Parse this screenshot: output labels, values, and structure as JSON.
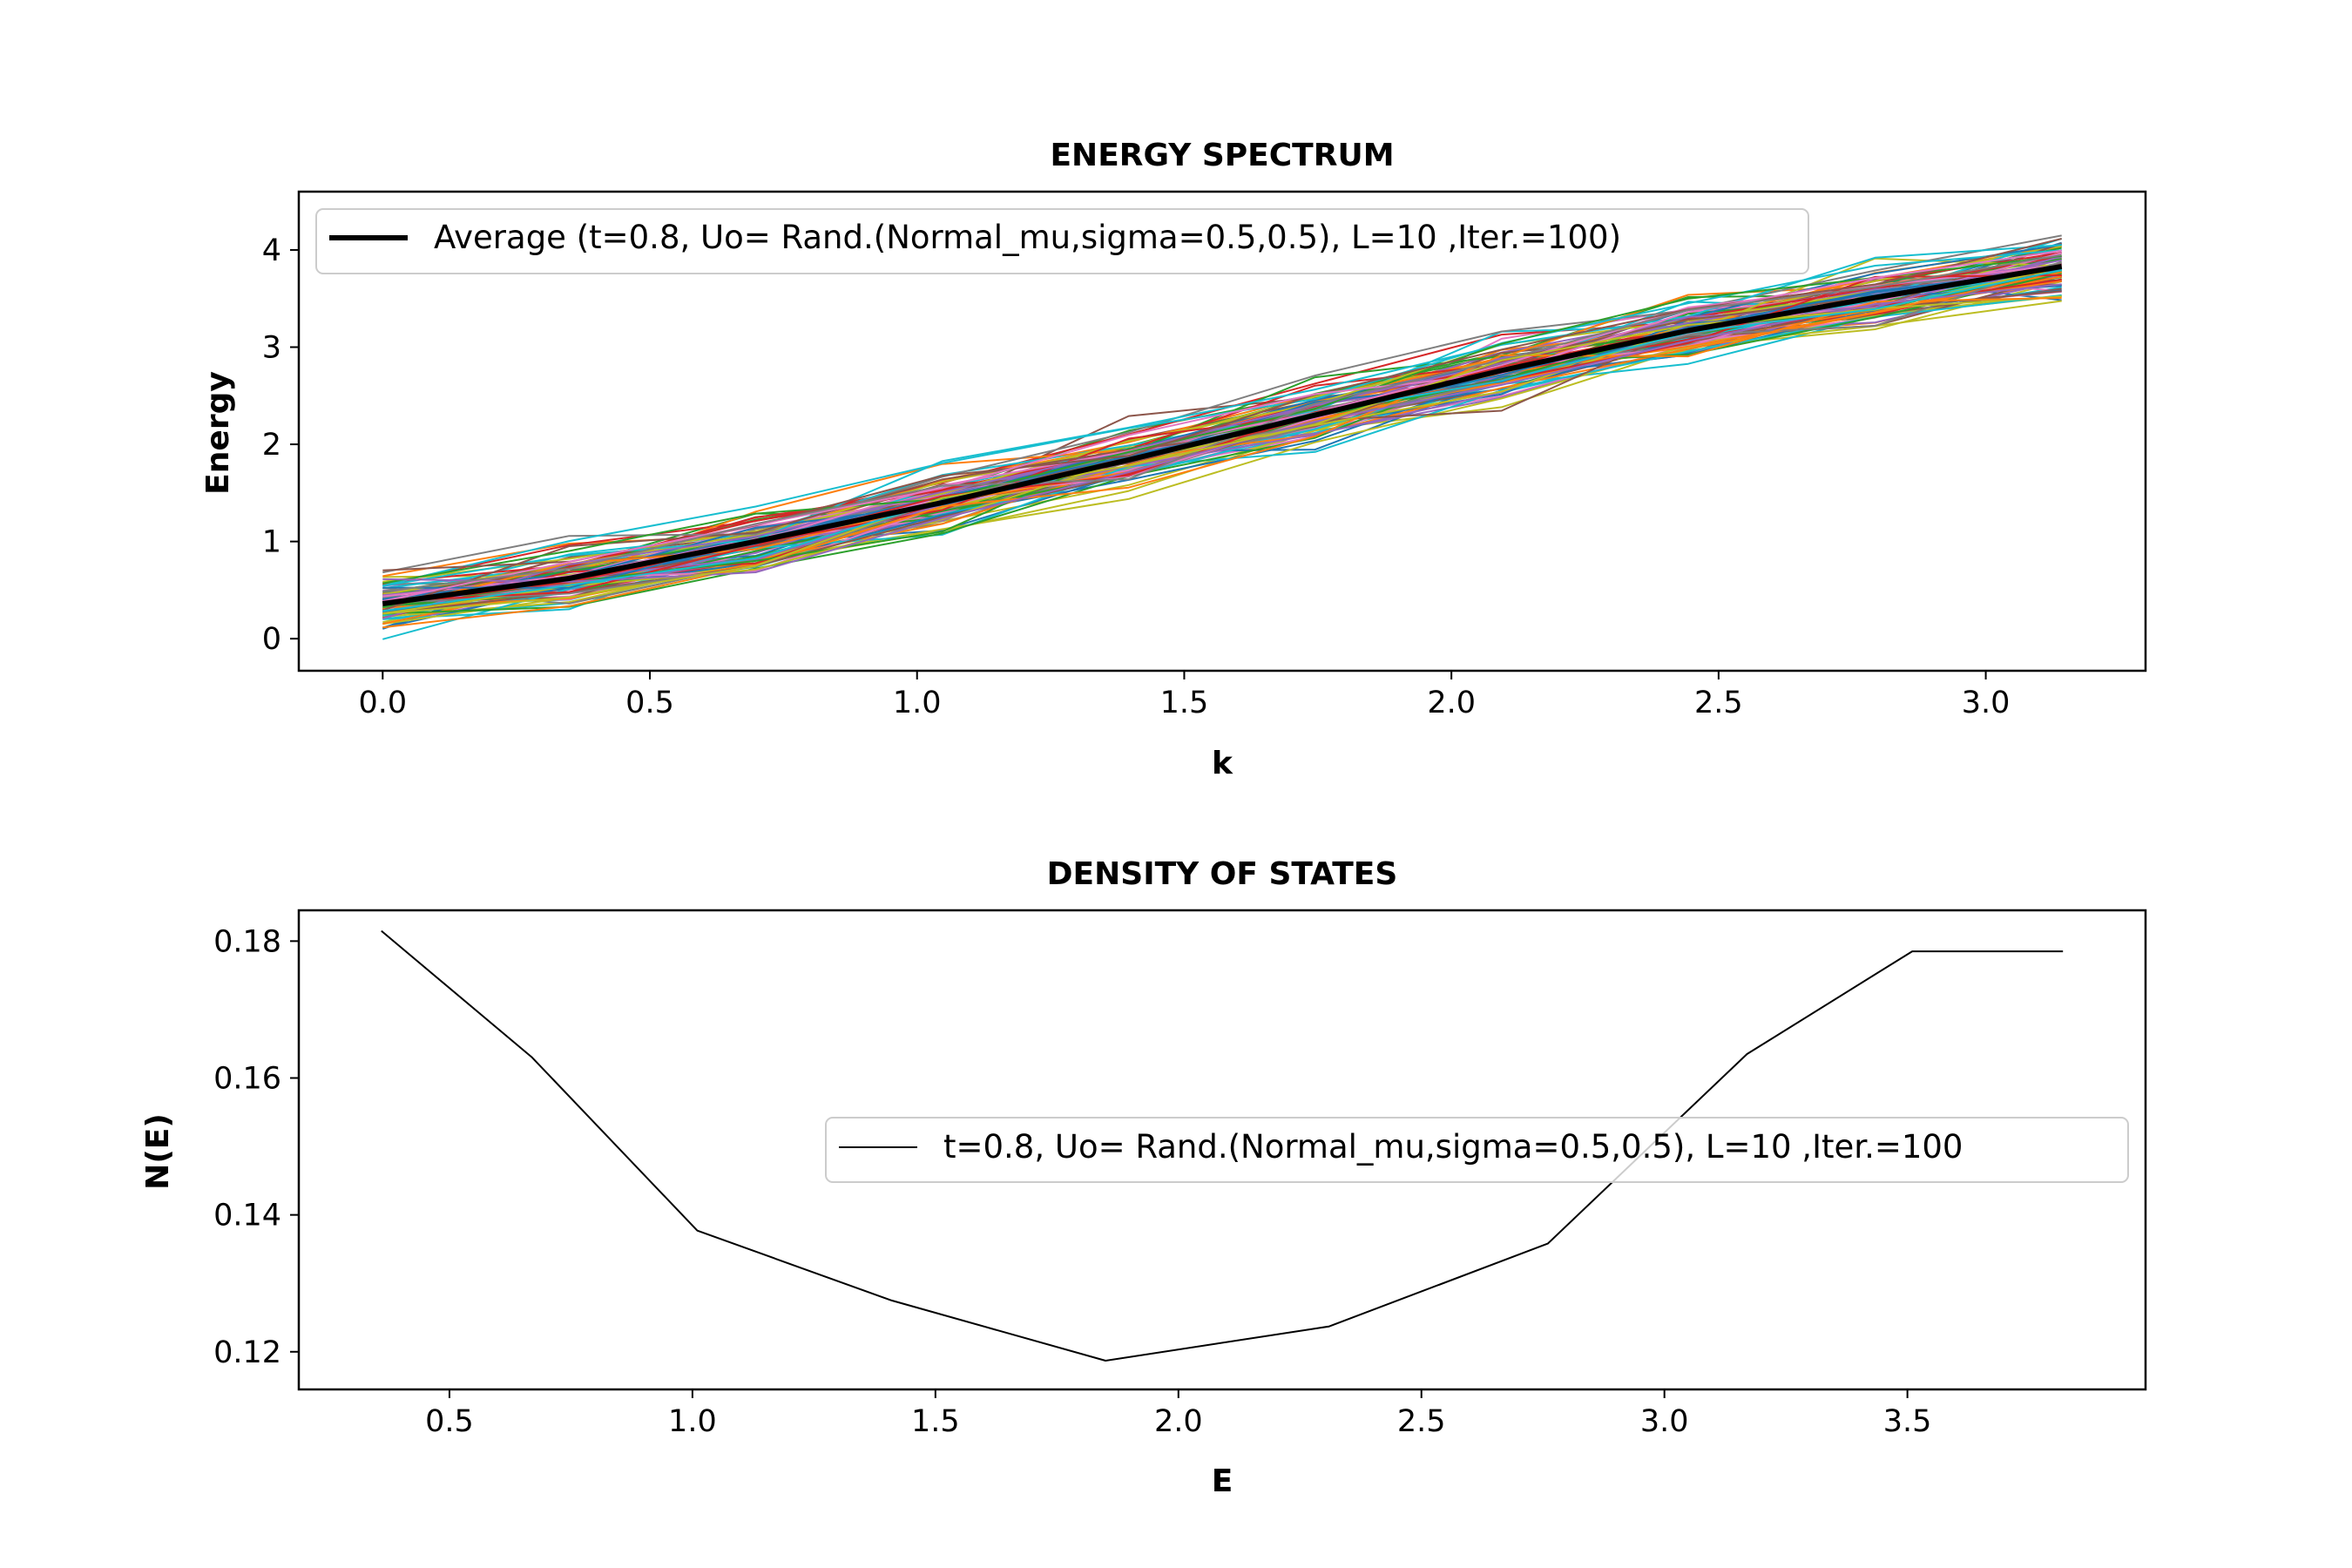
{
  "chart_data": [
    {
      "type": "line",
      "title": "ENERGY SPECTRUM",
      "xlabel": "k",
      "ylabel": "Energy",
      "xlim": [
        -0.157,
        3.299
      ],
      "ylim": [
        -0.33,
        4.6
      ],
      "xticks": [
        "0.0",
        "0.5",
        "1.0",
        "1.5",
        "2.0",
        "2.5",
        "3.0"
      ],
      "yticks": [
        "0",
        "1",
        "2",
        "3",
        "4"
      ],
      "grid": false,
      "legend_position": "upper-left",
      "x": [
        0.0,
        0.349,
        0.698,
        1.047,
        1.396,
        1.745,
        2.094,
        2.443,
        2.793,
        3.142
      ],
      "series": [
        {
          "name": "Average (t=0.8, Uo= Rand.(Normal_mu,sigma=0.5,0.5), L=10 ,Iter.=100)",
          "values": [
            0.36,
            0.62,
            1.0,
            1.4,
            1.84,
            2.3,
            2.76,
            3.17,
            3.51,
            3.83
          ],
          "color": "#000000",
          "emphasis": true
        }
      ],
      "background_iterations": {
        "count": 100,
        "spread": 0.2,
        "colors": [
          "#1f77b4",
          "#ff7f0e",
          "#2ca02c",
          "#d62728",
          "#9467bd",
          "#8c564b",
          "#e377c2",
          "#7f7f7f",
          "#bcbd22",
          "#17becf"
        ]
      }
    },
    {
      "type": "line",
      "title": "DENSITY OF STATES",
      "xlabel": "E",
      "ylabel": "N(E)",
      "xlim": [
        0.19,
        3.99
      ],
      "ylim": [
        0.1145,
        0.1845
      ],
      "xticks": [
        "0.5",
        "1.0",
        "1.5",
        "2.0",
        "2.5",
        "3.0",
        "3.5"
      ],
      "yticks": [
        "0.12",
        "0.14",
        "0.16",
        "0.18"
      ],
      "grid": false,
      "legend_position": "center-right",
      "series": [
        {
          "name": "t=0.8, Uo= Rand.(Normal_mu,sigma=0.5,0.5), L=10 ,Iter.=100",
          "x": [
            0.36,
            0.67,
            1.01,
            1.41,
            1.85,
            2.31,
            2.76,
            3.17,
            3.51,
            3.82
          ],
          "values": [
            0.1815,
            0.163,
            0.1377,
            0.1275,
            0.1187,
            0.1237,
            0.1358,
            0.1635,
            0.1785,
            0.1785
          ],
          "color": "#000000"
        }
      ]
    }
  ]
}
